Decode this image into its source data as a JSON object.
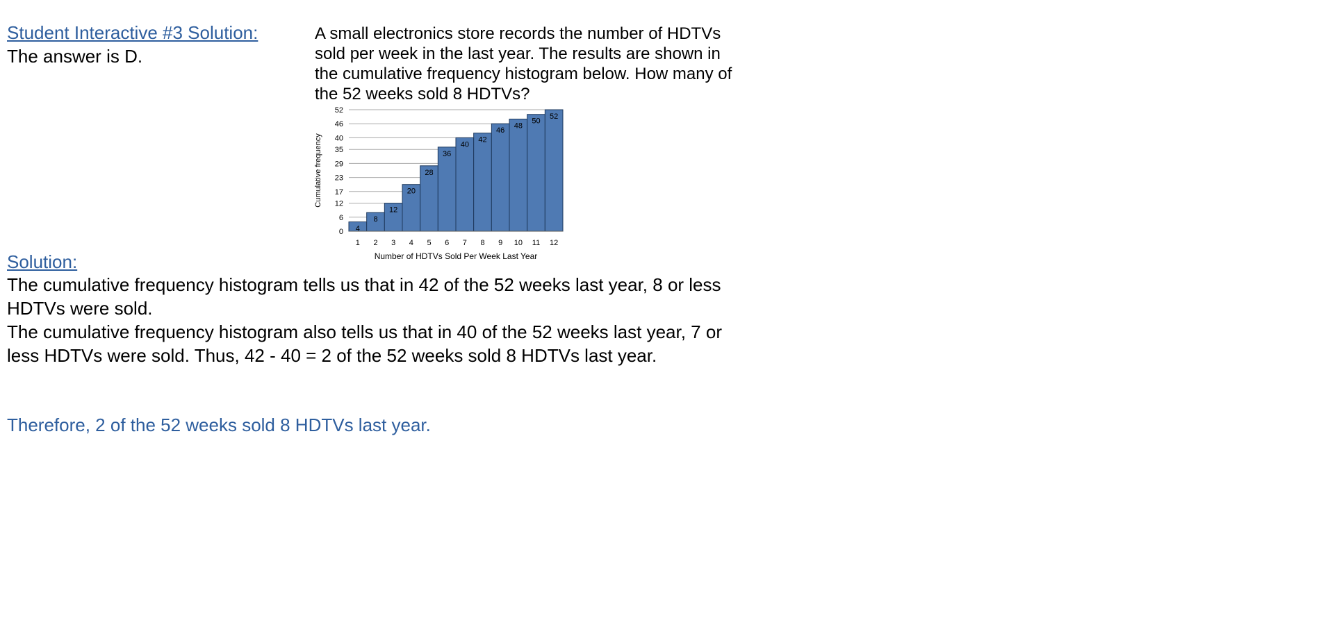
{
  "header": {
    "title_link": "Student Interactive #3 Solution:",
    "answer": "The answer is D."
  },
  "question": {
    "text": "A small electronics store records the number of HDTVs sold per week in the last year.  The results are shown in the cumulative frequency histogram below.  How many of the 52 weeks sold 8 HDTVs?"
  },
  "solution": {
    "heading": "Solution:",
    "paragraph_1": "The cumulative frequency histogram tells us that in 42 of the 52 weeks last year, 8 or less HDTVs were sold.",
    "paragraph_2": "The cumulative frequency histogram also tells us that in 40 of the 52 weeks last year, 7 or less HDTVs were sold.  Thus, 42 - 40 = 2 of the 52 weeks sold 8 HDTVs last year.",
    "conclusion": "Therefore, 2 of the 52 weeks sold 8 HDTVs last year."
  },
  "colors": {
    "link_blue": "#2e5e9e",
    "bar_fill": "#4f7ab3",
    "bar_stroke": "#1f3a5e",
    "grid": "#aaaaaa"
  },
  "chart_data": {
    "type": "bar",
    "title": "",
    "xlabel": "Number of HDTVs Sold Per Week Last Year",
    "ylabel": "Cumulative frequency",
    "categories": [
      "1",
      "2",
      "3",
      "4",
      "5",
      "6",
      "7",
      "8",
      "9",
      "10",
      "11",
      "12"
    ],
    "values": [
      4,
      8,
      12,
      20,
      28,
      36,
      40,
      42,
      46,
      48,
      50,
      52
    ],
    "data_labels": [
      "4",
      "8",
      "12",
      "20",
      "28",
      "36",
      "40",
      "42",
      "46",
      "48",
      "50",
      "52"
    ],
    "yticks": [
      0,
      6,
      12,
      17,
      23,
      29,
      35,
      40,
      46,
      52
    ],
    "ytick_labels": [
      "0",
      "6",
      "12",
      "17",
      "23",
      "29",
      "35",
      "40",
      "46",
      "52"
    ],
    "ylim": [
      0,
      52
    ],
    "grid": true,
    "legend": "none"
  }
}
